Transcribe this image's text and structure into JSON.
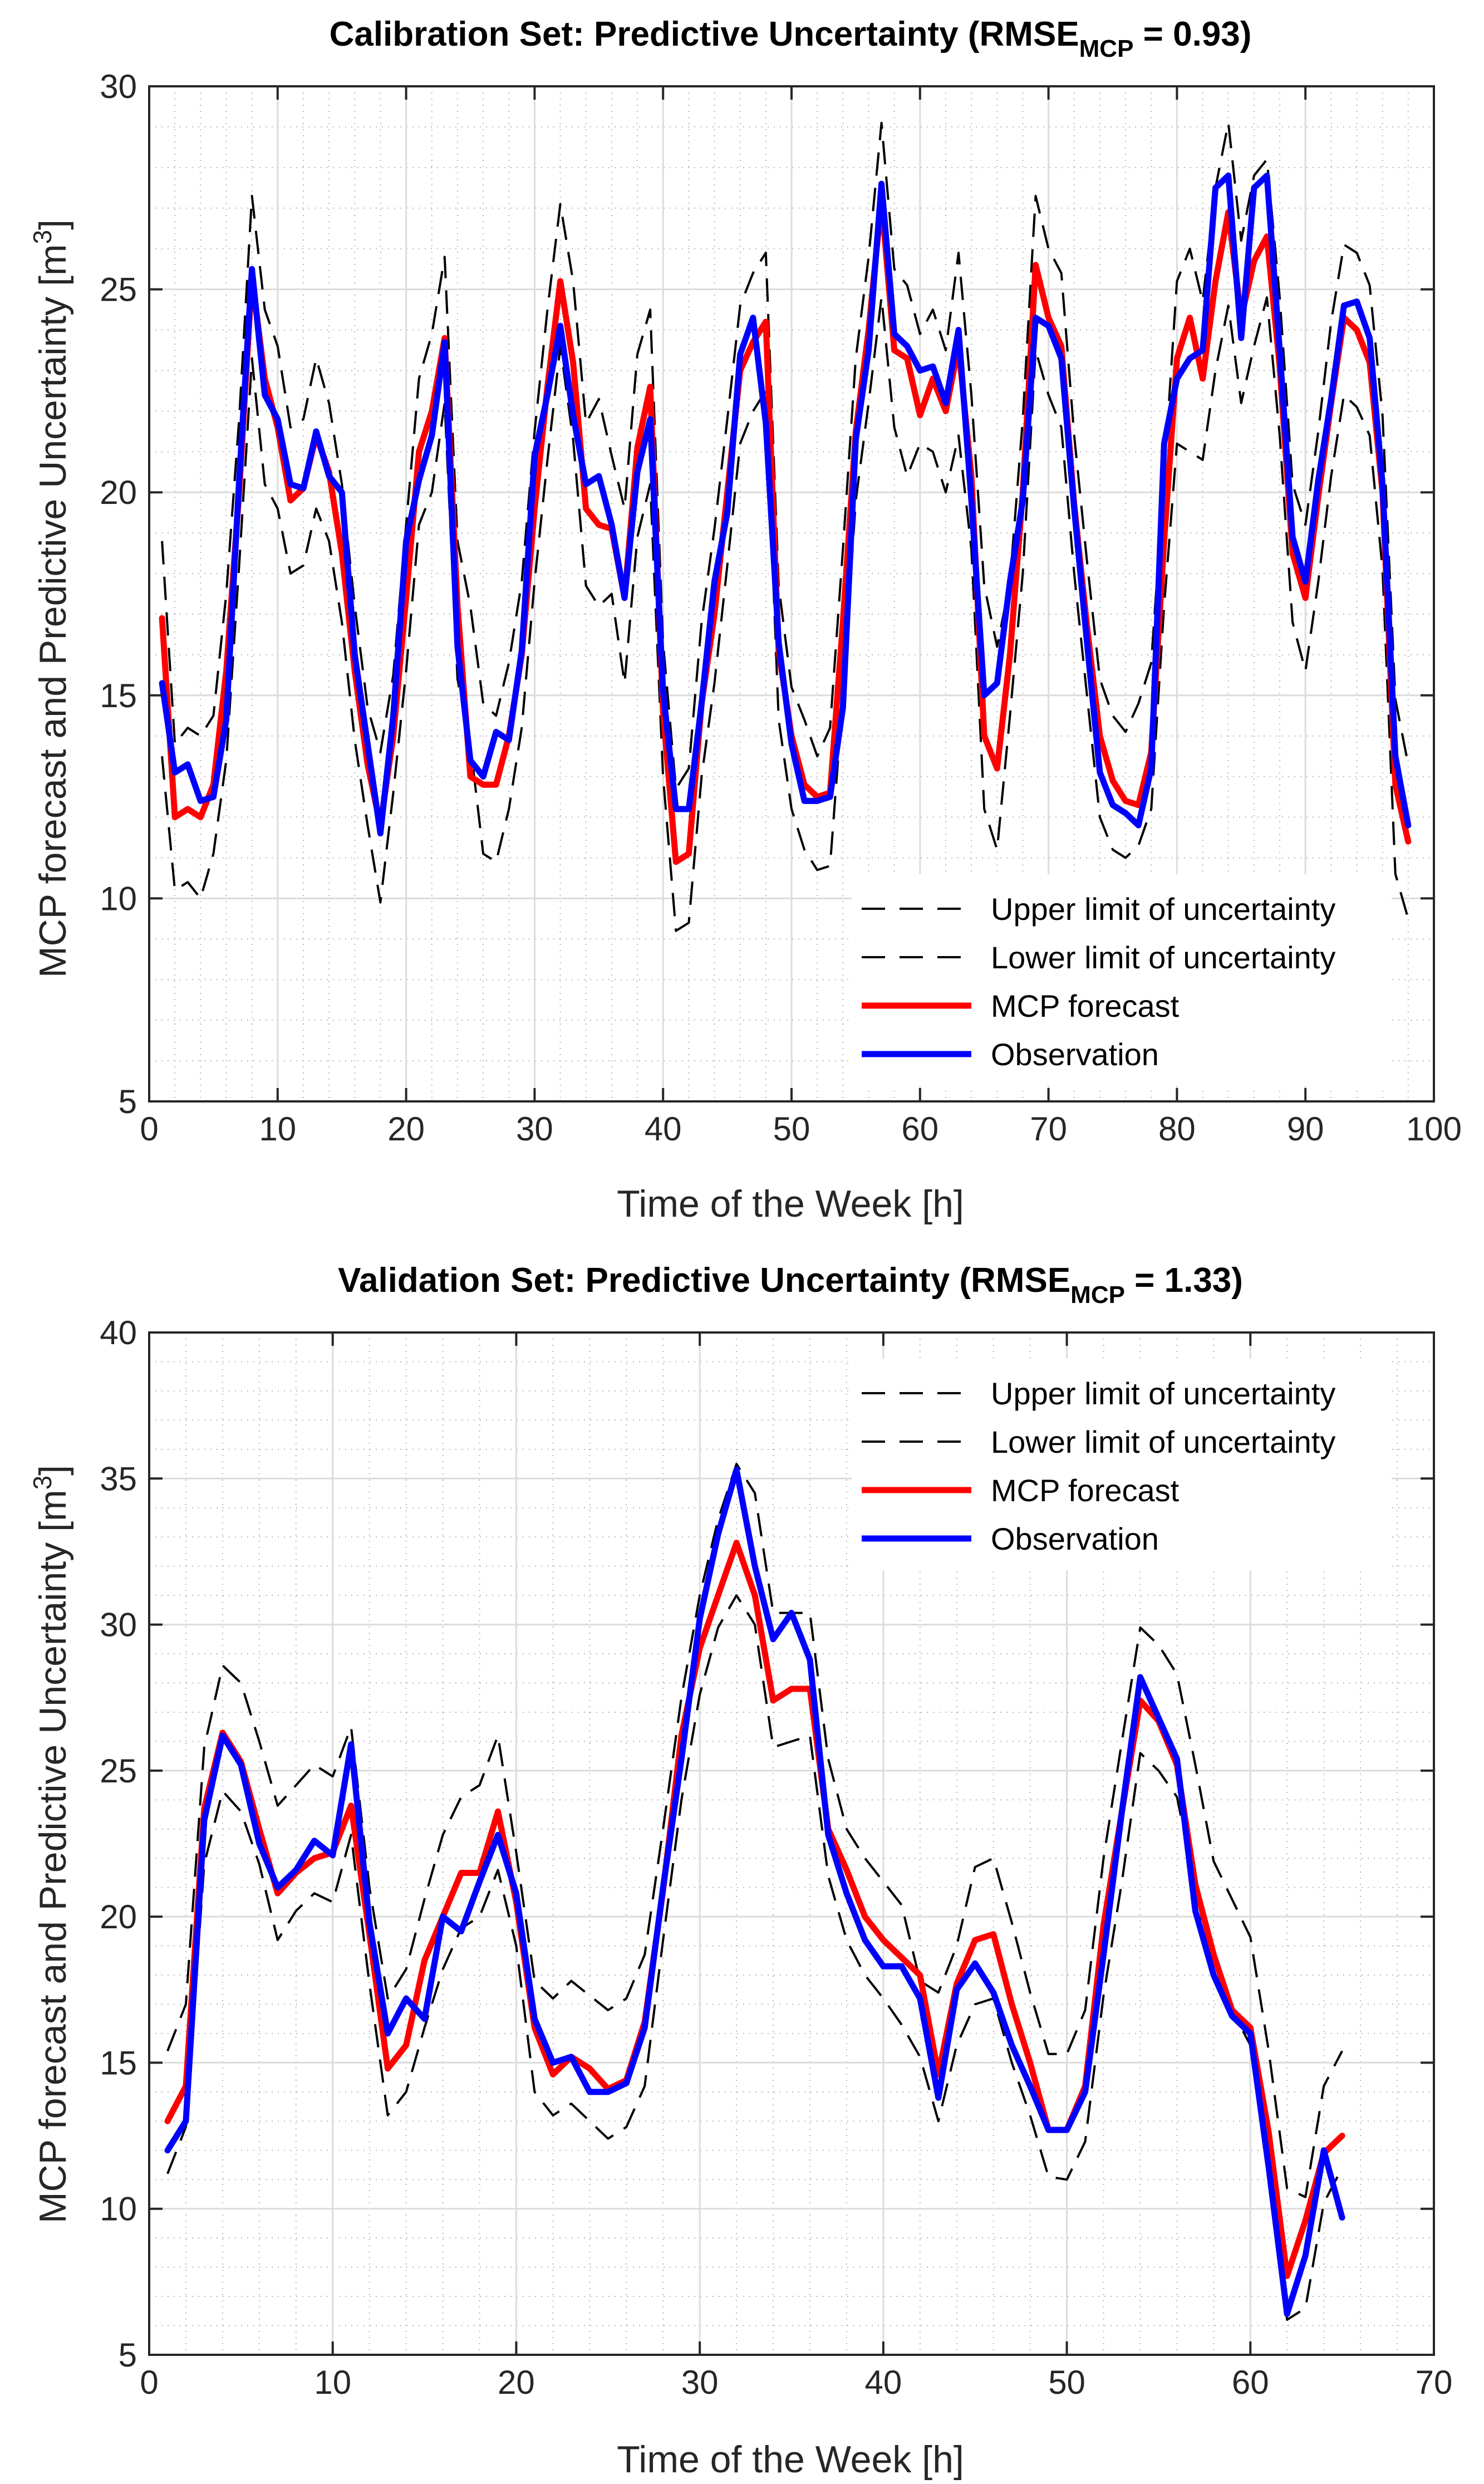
{
  "chart_data": [
    {
      "type": "line",
      "title": "Calibration Set: Predictive Uncertainty (RMSE",
      "title_subscript": "MCP",
      "title_suffix": " = 0.93)",
      "xlabel": "Time of the Week [h]",
      "ylabel": "MCP forecast and Predictive Uncertainty [m",
      "ylabel_superscript": "3",
      "ylabel_suffix": "]",
      "xlim": [
        0,
        100
      ],
      "ylim": [
        5,
        30
      ],
      "xticks": [
        0,
        10,
        20,
        30,
        40,
        50,
        60,
        70,
        80,
        90,
        100
      ],
      "yticks": [
        5,
        10,
        15,
        20,
        25,
        30
      ],
      "grid": true,
      "minor_grid": true,
      "legend_position": "bottom-right",
      "x": [
        1,
        2,
        3,
        4,
        5,
        6,
        7,
        8,
        9,
        10,
        11,
        12,
        13,
        14,
        15,
        16,
        17,
        18,
        19,
        20,
        21,
        22,
        23,
        24,
        25,
        26,
        27,
        28,
        29,
        30,
        31,
        32,
        33,
        34,
        35,
        36,
        37,
        38,
        39,
        40,
        41,
        42,
        43,
        44,
        45,
        46,
        47,
        48,
        49,
        50,
        51,
        52,
        53,
        54,
        55,
        56,
        57,
        58,
        59,
        60,
        61,
        62,
        63,
        64,
        65,
        66,
        67,
        68,
        69,
        70,
        71,
        72,
        73,
        74,
        75,
        76,
        77,
        78,
        79,
        80,
        81,
        82,
        83,
        84,
        85,
        86,
        87,
        88,
        89,
        90,
        91,
        92,
        93,
        94,
        95,
        96,
        97,
        98
      ],
      "series": [
        {
          "name": "Upper limit of uncertainty",
          "color": "#000000",
          "style": "dashed",
          "values": [
            18.8,
            13.8,
            14.2,
            14.0,
            14.5,
            17.5,
            21.8,
            27.3,
            24.5,
            23.6,
            21.6,
            21.8,
            23.3,
            22.2,
            20.2,
            17.2,
            14.7,
            13.6,
            15.5,
            19.2,
            22.8,
            23.9,
            25.8,
            18.8,
            17.2,
            14.8,
            14.5,
            15.8,
            17.8,
            21.5,
            24.5,
            27.1,
            25.2,
            21.7,
            22.3,
            20.9,
            19.6,
            23.4,
            24.5,
            16.3,
            12.7,
            13.2,
            16.8,
            19.1,
            21.8,
            24.6,
            25.4,
            25.9,
            17.7,
            15.2,
            14.4,
            13.5,
            14.2,
            18.6,
            23.3,
            25.8,
            29.1,
            25.5,
            25.1,
            23.9,
            24.5,
            23.5,
            25.9,
            22.4,
            17.7,
            16.2,
            17.8,
            21.8,
            27.3,
            26.0,
            25.4,
            21.4,
            18.3,
            15.4,
            14.5,
            14.1,
            14.8,
            15.8,
            20.4,
            25.2,
            26.0,
            24.7,
            27.5,
            29.1,
            26.2,
            27.8,
            28.2,
            24.8,
            20.2,
            19.2,
            21.5,
            24.2,
            26.1,
            25.9,
            25.1,
            21.9,
            14.9,
            13.3
          ]
        },
        {
          "name": "Lower limit of uncertainty",
          "color": "#000000",
          "style": "dashed",
          "values": [
            13.5,
            10.2,
            10.4,
            10.0,
            11.1,
            13.4,
            18.2,
            23.3,
            20.2,
            19.6,
            18.0,
            18.2,
            19.6,
            18.8,
            16.8,
            13.9,
            11.8,
            9.9,
            12.6,
            15.6,
            19.2,
            20.0,
            22.2,
            15.4,
            13.8,
            11.1,
            10.9,
            12.2,
            14.2,
            17.8,
            20.8,
            23.6,
            21.3,
            17.7,
            17.2,
            17.5,
            15.3,
            18.9,
            20.2,
            13.0,
            9.2,
            9.4,
            13.0,
            15.3,
            18.2,
            21.2,
            22.0,
            22.5,
            14.4,
            12.2,
            11.2,
            10.7,
            10.8,
            15.0,
            19.8,
            22.2,
            24.8,
            21.6,
            20.4,
            21.2,
            21.0,
            20.0,
            21.4,
            18.6,
            12.2,
            11.2,
            14.5,
            18.0,
            23.5,
            22.4,
            21.6,
            18.0,
            15.0,
            12.0,
            11.2,
            11.0,
            11.3,
            12.2,
            17.2,
            21.2,
            21.0,
            20.8,
            23.0,
            24.6,
            22.2,
            23.6,
            24.8,
            21.4,
            16.8,
            15.6,
            17.8,
            20.4,
            22.4,
            22.1,
            21.4,
            18.1,
            10.6,
            9.5
          ]
        },
        {
          "name": "MCP forecast",
          "color": "#ff0000",
          "style": "solid",
          "values": [
            16.9,
            12.0,
            12.2,
            12.0,
            12.8,
            15.6,
            20.0,
            25.3,
            22.8,
            21.6,
            19.8,
            20.1,
            21.4,
            20.5,
            18.5,
            15.6,
            13.3,
            11.8,
            14.0,
            17.4,
            21.0,
            22.0,
            23.8,
            17.2,
            13.0,
            12.8,
            12.8,
            14.0,
            16.0,
            19.6,
            22.6,
            25.2,
            23.2,
            19.6,
            19.2,
            19.1,
            17.4,
            21.1,
            22.6,
            14.6,
            10.9,
            11.1,
            14.8,
            17.0,
            20.0,
            23.0,
            23.7,
            24.2,
            16.1,
            14.0,
            12.8,
            12.5,
            12.6,
            16.8,
            21.5,
            24.0,
            27.2,
            23.5,
            23.3,
            21.9,
            22.8,
            22.0,
            23.6,
            20.4,
            14.0,
            13.2,
            16.0,
            20.0,
            25.6,
            24.3,
            23.6,
            19.7,
            16.7,
            14.0,
            12.9,
            12.4,
            12.3,
            13.6,
            18.8,
            23.3,
            24.3,
            22.8,
            25.2,
            26.9,
            24.3,
            25.7,
            26.3,
            23.1,
            18.5,
            17.4,
            19.9,
            22.2,
            24.3,
            24.0,
            23.2,
            20.0,
            12.8,
            11.4
          ]
        },
        {
          "name": "Observation",
          "color": "#0000ff",
          "style": "solid",
          "values": [
            15.3,
            13.1,
            13.3,
            12.4,
            12.5,
            14.4,
            20.3,
            25.5,
            22.4,
            21.8,
            20.2,
            20.1,
            21.5,
            20.4,
            20.0,
            16.0,
            13.8,
            11.6,
            14.5,
            18.8,
            20.3,
            21.4,
            23.7,
            16.2,
            13.4,
            13.0,
            14.1,
            13.9,
            16.1,
            20.9,
            22.4,
            24.1,
            21.9,
            20.2,
            20.4,
            19.2,
            17.4,
            20.5,
            21.8,
            15.1,
            12.2,
            12.2,
            14.8,
            17.8,
            19.5,
            23.4,
            24.3,
            21.7,
            16.3,
            13.8,
            12.4,
            12.4,
            12.5,
            14.7,
            21.3,
            23.5,
            27.6,
            23.9,
            23.6,
            23.0,
            23.1,
            22.2,
            24.0,
            19.8,
            15.0,
            15.3,
            17.8,
            19.8,
            24.3,
            24.1,
            23.3,
            19.6,
            16.3,
            13.1,
            12.3,
            12.1,
            11.8,
            13.2,
            21.2,
            22.8,
            23.3,
            23.5,
            27.5,
            27.8,
            23.8,
            27.5,
            27.8,
            23.5,
            18.9,
            17.8,
            20.3,
            22.3,
            24.6,
            24.7,
            23.8,
            20.2,
            13.5,
            11.8
          ]
        }
      ]
    },
    {
      "type": "line",
      "title": "Validation Set: Predictive Uncertainty (RMSE",
      "title_subscript": "MCP",
      "title_suffix": " = 1.33)",
      "xlabel": "Time of the Week [h]",
      "ylabel": "MCP forecast and Predictive Uncertainty [m",
      "ylabel_superscript": "3",
      "ylabel_suffix": "]",
      "xlim": [
        0,
        70
      ],
      "ylim": [
        5,
        40
      ],
      "xticks": [
        0,
        10,
        20,
        30,
        40,
        50,
        60,
        70
      ],
      "yticks": [
        5,
        10,
        15,
        20,
        25,
        30,
        35,
        40
      ],
      "grid": true,
      "minor_grid": true,
      "legend_position": "top-right",
      "x": [
        1,
        2,
        3,
        4,
        5,
        6,
        7,
        8,
        9,
        10,
        11,
        12,
        13,
        14,
        15,
        16,
        17,
        18,
        19,
        20,
        21,
        22,
        23,
        24,
        25,
        26,
        27,
        28,
        29,
        30,
        31,
        32,
        33,
        34,
        35,
        36,
        37,
        38,
        39,
        40,
        41,
        42,
        43,
        44,
        45,
        46,
        47,
        48,
        49,
        50,
        51,
        52,
        53,
        54,
        55,
        56,
        57,
        58,
        59,
        60,
        61,
        62,
        63,
        64,
        65
      ],
      "series": [
        {
          "name": "Upper limit of uncertainty",
          "color": "#000000",
          "style": "dashed",
          "values": [
            15.4,
            17.0,
            25.8,
            28.6,
            28.0,
            26.0,
            23.8,
            24.5,
            25.2,
            24.8,
            26.5,
            21.0,
            17.2,
            18.2,
            20.6,
            22.8,
            24.1,
            24.5,
            26.2,
            22.2,
            17.8,
            17.2,
            17.8,
            17.3,
            16.8,
            17.2,
            18.7,
            23.0,
            27.5,
            31.0,
            33.6,
            35.5,
            34.5,
            30.4,
            30.4,
            30.4,
            25.4,
            23.0,
            22.0,
            21.2,
            20.4,
            17.8,
            17.4,
            19.0,
            21.7,
            22.0,
            19.8,
            17.4,
            15.3,
            15.3,
            16.8,
            22.0,
            26.0,
            29.9,
            29.3,
            28.3,
            25.2,
            21.9,
            20.6,
            19.3,
            15.4,
            10.7,
            10.4,
            14.2,
            15.4
          ]
        },
        {
          "name": "Lower limit of uncertainty",
          "color": "#000000",
          "style": "dashed",
          "values": [
            11.2,
            12.8,
            21.8,
            24.3,
            23.6,
            21.8,
            19.2,
            20.2,
            20.8,
            20.5,
            22.8,
            17.7,
            13.2,
            14.0,
            16.2,
            18.2,
            19.6,
            20.0,
            21.6,
            19.0,
            14.0,
            13.2,
            13.6,
            13.0,
            12.4,
            12.8,
            14.2,
            19.2,
            24.0,
            27.6,
            29.9,
            31.0,
            30.0,
            25.8,
            26.0,
            26.2,
            21.4,
            19.2,
            18.0,
            17.2,
            16.3,
            15.2,
            13.0,
            15.6,
            17.0,
            17.2,
            15.0,
            13.2,
            11.1,
            11.0,
            12.3,
            17.3,
            21.2,
            25.6,
            25.0,
            24.1,
            21.0,
            18.0,
            16.8,
            15.6,
            11.2,
            6.2,
            6.6,
            10.2,
            11.4
          ]
        },
        {
          "name": "MCP forecast",
          "color": "#ff0000",
          "style": "solid",
          "values": [
            13.0,
            14.2,
            23.7,
            26.3,
            25.3,
            23.0,
            20.8,
            21.5,
            22.0,
            22.2,
            23.8,
            19.4,
            14.8,
            15.6,
            18.5,
            20.0,
            21.5,
            21.5,
            23.6,
            20.5,
            16.2,
            14.6,
            15.2,
            14.8,
            14.1,
            14.4,
            16.4,
            20.9,
            26.2,
            29.2,
            31.0,
            32.8,
            31.0,
            27.4,
            27.8,
            27.8,
            23.0,
            21.6,
            20.0,
            19.2,
            18.6,
            18.0,
            14.6,
            17.7,
            19.2,
            19.4,
            17.0,
            15.0,
            12.7,
            12.7,
            14.2,
            19.7,
            23.6,
            27.4,
            26.7,
            25.2,
            21.1,
            18.7,
            16.8,
            16.2,
            12.6,
            7.7,
            9.6,
            11.9,
            12.5
          ]
        },
        {
          "name": "Observation",
          "color": "#0000ff",
          "style": "solid",
          "values": [
            12.0,
            13.0,
            23.3,
            26.2,
            25.2,
            22.5,
            21.0,
            21.6,
            22.6,
            22.1,
            25.9,
            19.8,
            16.0,
            17.2,
            16.5,
            20.0,
            19.5,
            21.2,
            22.8,
            20.8,
            16.5,
            15.0,
            15.2,
            14.0,
            14.0,
            14.3,
            16.2,
            21.0,
            25.4,
            30.2,
            33.1,
            35.3,
            32.0,
            29.5,
            30.4,
            28.8,
            22.8,
            20.8,
            19.2,
            18.3,
            18.3,
            17.2,
            13.8,
            17.5,
            18.4,
            17.4,
            15.6,
            14.2,
            12.7,
            12.7,
            14.0,
            18.7,
            23.6,
            28.2,
            26.8,
            25.4,
            20.2,
            18.0,
            16.6,
            16.0,
            11.4,
            6.4,
            8.4,
            12.0,
            9.7
          ]
        }
      ]
    }
  ]
}
